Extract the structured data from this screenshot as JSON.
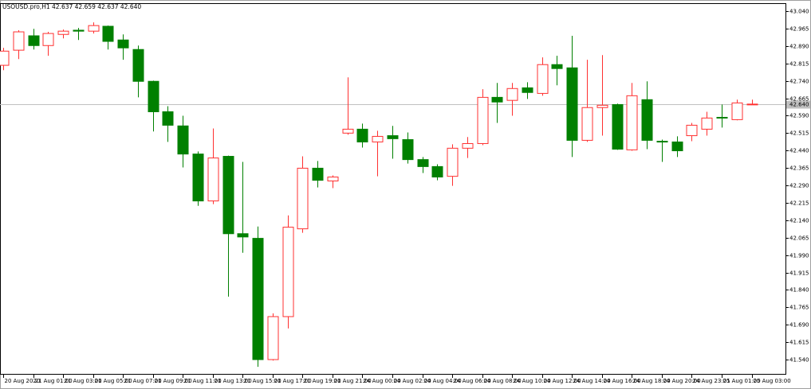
{
  "chart_data": {
    "type": "candlestick",
    "title": "USOUSD.pro,H1  42.637 42.659 42.637 42.640",
    "categories": [
      "20 Aug 2020",
      null,
      "21 Aug 01:00",
      null,
      "21 Aug 03:00",
      null,
      "21 Aug 05:00",
      null,
      "21 Aug 07:00",
      null,
      "21 Aug 09:00",
      null,
      "21 Aug 11:00",
      null,
      "21 Aug 13:00",
      null,
      "21 Aug 15:00",
      null,
      "21 Aug 17:00",
      null,
      "21 Aug 19:00",
      null,
      "21 Aug 21:00",
      null,
      "24 Aug 00:00",
      null,
      "24 Aug 02:00",
      null,
      "24 Aug 04:00",
      null,
      "24 Aug 06:00",
      null,
      "24 Aug 08:00",
      null,
      "24 Aug 10:00",
      null,
      "24 Aug 12:00",
      null,
      "24 Aug 14:00",
      null,
      "24 Aug 16:00",
      null,
      "24 Aug 18:00",
      null,
      "24 Aug 20:00",
      null,
      "24 Aug 23:01",
      null,
      "25 Aug 01:00",
      null,
      "25 Aug 03:00"
    ],
    "open": [
      42.807,
      42.872,
      42.934,
      42.892,
      42.94,
      42.958,
      42.954,
      42.975,
      42.916,
      42.875,
      42.738,
      42.607,
      42.546,
      42.425,
      42.223,
      42.415,
      42.082,
      42.062,
      41.54,
      41.725,
      42.103,
      42.364,
      42.309,
      42.515,
      42.532,
      42.477,
      42.504,
      42.487,
      42.401,
      42.371,
      42.329,
      42.45,
      42.47,
      42.669,
      42.656,
      42.71,
      42.686,
      42.81,
      42.796,
      42.484,
      42.625,
      42.638,
      42.443,
      42.659,
      42.48,
      42.477,
      42.504,
      42.532,
      42.583,
      42.573,
      42.637
    ],
    "high": [
      42.882,
      42.958,
      42.964,
      42.951,
      42.961,
      42.968,
      42.992,
      42.978,
      42.94,
      42.892,
      42.741,
      42.631,
      42.59,
      42.436,
      42.535,
      42.418,
      42.391,
      42.113,
      41.739,
      42.161,
      42.415,
      42.395,
      42.333,
      42.755,
      42.556,
      42.525,
      42.546,
      42.518,
      42.412,
      42.381,
      42.467,
      42.498,
      42.704,
      42.731,
      42.731,
      42.734,
      42.841,
      42.848,
      42.934,
      42.831,
      42.851,
      42.642,
      42.731,
      42.738,
      42.487,
      42.501,
      42.559,
      42.607,
      42.638,
      42.659,
      42.659
    ],
    "low": [
      42.786,
      42.834,
      42.875,
      42.848,
      42.923,
      42.916,
      42.944,
      42.875,
      42.831,
      42.669,
      42.522,
      42.477,
      42.367,
      42.202,
      42.209,
      41.811,
      42.0,
      41.509,
      41.536,
      41.674,
      42.086,
      42.281,
      42.278,
      42.508,
      42.453,
      42.329,
      42.405,
      42.384,
      42.343,
      42.312,
      42.288,
      42.408,
      42.463,
      42.559,
      42.59,
      42.662,
      42.676,
      42.721,
      42.412,
      42.477,
      42.504,
      42.443,
      42.439,
      42.446,
      42.391,
      42.412,
      42.48,
      42.504,
      42.539,
      42.57,
      42.637
    ],
    "close": [
      42.868,
      42.951,
      42.892,
      42.944,
      42.954,
      42.954,
      42.978,
      42.91,
      42.882,
      42.738,
      42.607,
      42.549,
      42.425,
      42.223,
      42.408,
      42.082,
      42.068,
      41.54,
      41.725,
      42.11,
      42.364,
      42.312,
      42.326,
      42.532,
      42.477,
      42.501,
      42.491,
      42.401,
      42.371,
      42.326,
      42.45,
      42.47,
      42.669,
      42.649,
      42.707,
      42.69,
      42.81,
      42.793,
      42.484,
      42.625,
      42.635,
      42.446,
      42.676,
      42.484,
      42.477,
      42.439,
      42.549,
      42.58,
      42.58,
      42.645,
      42.64
    ],
    "up_color": "#ff3030",
    "down_color": "#008000",
    "ylim": [
      41.475,
      43.071
    ],
    "yticks": [
      {
        "value": 43.04,
        "label": "43.040"
      },
      {
        "value": 42.965,
        "label": "42.965"
      },
      {
        "value": 42.89,
        "label": "42.890"
      },
      {
        "value": 42.815,
        "label": "42.815"
      },
      {
        "value": 42.74,
        "label": "42.740"
      },
      {
        "value": 42.665,
        "label": "42.665"
      },
      {
        "value": 42.59,
        "label": "42.590"
      },
      {
        "value": 42.515,
        "label": "42.515"
      },
      {
        "value": 42.44,
        "label": "42.440"
      },
      {
        "value": 42.365,
        "label": "42.365"
      },
      {
        "value": 42.29,
        "label": "42.290"
      },
      {
        "value": 42.215,
        "label": "42.215"
      },
      {
        "value": 42.14,
        "label": "42.140"
      },
      {
        "value": 42.065,
        "label": "42.065"
      },
      {
        "value": 41.99,
        "label": "41.990"
      },
      {
        "value": 41.915,
        "label": "41.915"
      },
      {
        "value": 41.84,
        "label": "41.840"
      },
      {
        "value": 41.765,
        "label": "41.765"
      },
      {
        "value": 41.69,
        "label": "41.690"
      },
      {
        "value": 41.615,
        "label": "41.615"
      },
      {
        "value": 41.54,
        "label": "41.540"
      }
    ],
    "current_price": {
      "value": 42.64,
      "label": "42.640"
    },
    "current_price_color": "#c0c0c0"
  }
}
